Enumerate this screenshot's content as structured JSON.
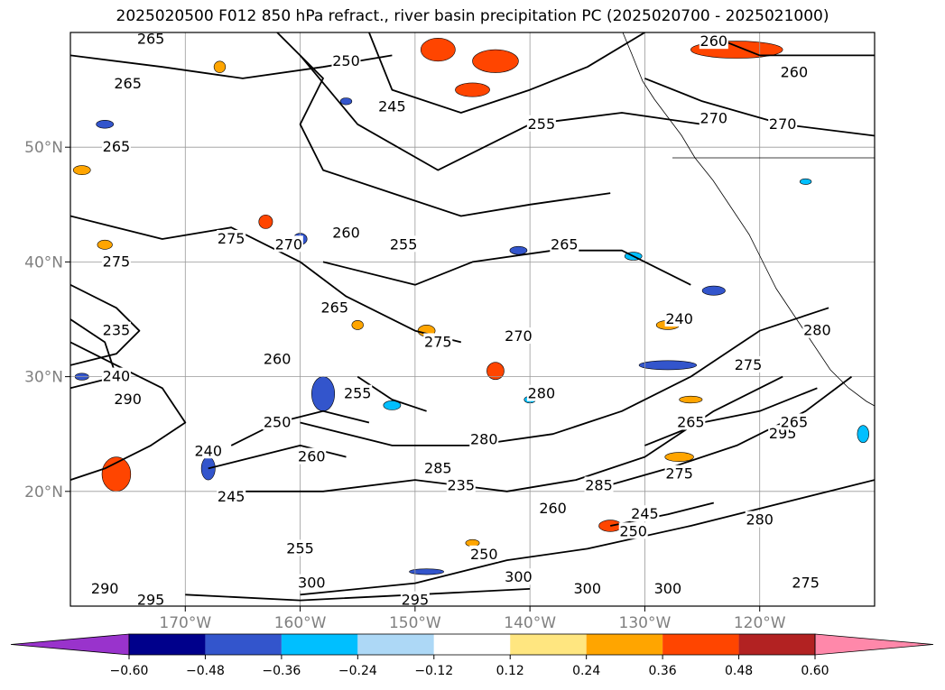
{
  "chart_data": {
    "type": "heatmap",
    "title": "2025020500 F012 850 hPa refract., river basin precipitation PC (2025020700 - 2025021000)",
    "map": {
      "lon_range": [
        -180,
        -110
      ],
      "lat_range": [
        10,
        60
      ],
      "lon_ticks": [
        {
          "lon": -170,
          "label": "170°W"
        },
        {
          "lon": -160,
          "label": "160°W"
        },
        {
          "lon": -150,
          "label": "150°W"
        },
        {
          "lon": -140,
          "label": "140°W"
        },
        {
          "lon": -130,
          "label": "130°W"
        },
        {
          "lon": -120,
          "label": "120°W"
        }
      ],
      "lat_ticks": [
        {
          "lat": 50,
          "label": "50°N"
        },
        {
          "lat": 40,
          "label": "40°N"
        },
        {
          "lat": 30,
          "label": "30°N"
        },
        {
          "lat": 20,
          "label": "20°N"
        }
      ],
      "grid": true
    },
    "colorbar": {
      "position": "bottom",
      "extend": "both",
      "bounds": [
        -0.6,
        -0.48,
        -0.36,
        -0.24,
        -0.12,
        0.12,
        0.24,
        0.36,
        0.48,
        0.6
      ],
      "tick_labels": [
        "−0.60",
        "−0.48",
        "−0.36",
        "−0.24",
        "−0.12",
        "0.12",
        "0.24",
        "0.36",
        "0.48",
        "0.60"
      ],
      "colors": [
        "#9933cc",
        "#00008b",
        "#3355cc",
        "#00bfff",
        "#add8f6",
        "#ffffff",
        "#ffe680",
        "#ffa500",
        "#ff4500",
        "#b22222",
        "#ff88aa"
      ]
    },
    "contours": [
      {
        "level": 265,
        "points": [
          [
            -180,
            58
          ],
          [
            -172,
            57
          ],
          [
            -165,
            56
          ],
          [
            -158,
            57
          ],
          [
            -152,
            58
          ]
        ],
        "labels": [
          {
            "lon": -173,
            "lat": 59.4,
            "text": "265"
          },
          {
            "lon": -175,
            "lat": 55.5,
            "text": "265"
          },
          {
            "lon": -176,
            "lat": 50,
            "text": "265"
          }
        ]
      },
      {
        "level": 250,
        "points": [
          [
            -162,
            60
          ],
          [
            -158,
            56
          ],
          [
            -160,
            52
          ],
          [
            -158,
            48
          ],
          [
            -152,
            46
          ],
          [
            -146,
            44
          ],
          [
            -140,
            45
          ],
          [
            -133,
            46
          ]
        ],
        "labels": [
          {
            "lon": -156,
            "lat": 57.5,
            "text": "250"
          }
        ]
      },
      {
        "level": 245,
        "points": [
          [
            -154,
            60
          ],
          [
            -152,
            55
          ],
          [
            -146,
            53
          ],
          [
            -140,
            55
          ],
          [
            -135,
            57
          ],
          [
            -130,
            60
          ]
        ],
        "labels": [
          {
            "lon": -152,
            "lat": 53.5,
            "text": "245"
          }
        ]
      },
      {
        "level": 255,
        "points": [
          [
            -160,
            58
          ],
          [
            -155,
            52
          ],
          [
            -148,
            48
          ],
          [
            -140,
            52
          ],
          [
            -132,
            53
          ],
          [
            -125,
            52
          ]
        ],
        "labels": [
          {
            "lon": -139,
            "lat": 52,
            "text": "255"
          },
          {
            "lon": -151,
            "lat": 41.5,
            "text": "255"
          }
        ]
      },
      {
        "level": 260,
        "points": [
          [
            -125,
            60
          ],
          [
            -120,
            58
          ],
          [
            -112,
            58
          ],
          [
            -110,
            58
          ]
        ],
        "labels": [
          {
            "lon": -124,
            "lat": 59.2,
            "text": "260"
          },
          {
            "lon": -117,
            "lat": 56.5,
            "text": "260"
          },
          {
            "lon": -156,
            "lat": 42.5,
            "text": "260"
          }
        ]
      },
      {
        "level": 270,
        "points": [
          [
            -130,
            56
          ],
          [
            -125,
            54
          ],
          [
            -118,
            52
          ],
          [
            -110,
            51
          ]
        ],
        "labels": [
          {
            "lon": -124,
            "lat": 52.5,
            "text": "270"
          },
          {
            "lon": -118,
            "lat": 52,
            "text": "270"
          },
          {
            "lon": -161,
            "lat": 41.5,
            "text": "270"
          },
          {
            "lon": -141,
            "lat": 33.5,
            "text": "270"
          }
        ]
      },
      {
        "level": 275,
        "points": [
          [
            -180,
            44
          ],
          [
            -172,
            42
          ],
          [
            -166,
            43
          ],
          [
            -160,
            40
          ],
          [
            -156,
            37
          ],
          [
            -150,
            34
          ],
          [
            -146,
            33
          ]
        ],
        "labels": [
          {
            "lon": -166,
            "lat": 42,
            "text": "275"
          },
          {
            "lon": -176,
            "lat": 40,
            "text": "275"
          },
          {
            "lon": -148,
            "lat": 33,
            "text": "275"
          },
          {
            "lon": -116,
            "lat": 12,
            "text": "275"
          }
        ]
      },
      {
        "level": 265,
        "points": [
          [
            -158,
            40
          ],
          [
            -150,
            38
          ],
          [
            -145,
            40
          ],
          [
            -138,
            41
          ],
          [
            -132,
            41
          ],
          [
            -126,
            38
          ]
        ],
        "labels": [
          {
            "lon": -137,
            "lat": 41.5,
            "text": "265"
          },
          {
            "lon": -157,
            "lat": 36,
            "text": "265"
          }
        ]
      },
      {
        "level": 280,
        "points": [
          [
            -160,
            26
          ],
          [
            -152,
            24
          ],
          [
            -145,
            24
          ],
          [
            -138,
            25
          ],
          [
            -132,
            27
          ],
          [
            -126,
            30
          ],
          [
            -120,
            34
          ],
          [
            -114,
            36
          ]
        ],
        "labels": [
          {
            "lon": -144,
            "lat": 24.5,
            "text": "280"
          },
          {
            "lon": -139,
            "lat": 28.5,
            "text": "280"
          },
          {
            "lon": -115,
            "lat": 34,
            "text": "280"
          },
          {
            "lon": -120,
            "lat": 17.5,
            "text": "280"
          }
        ]
      },
      {
        "level": 285,
        "points": [
          [
            -165,
            20
          ],
          [
            -158,
            20
          ],
          [
            -150,
            21
          ],
          [
            -142,
            20
          ],
          [
            -136,
            21
          ],
          [
            -130,
            23
          ],
          [
            -124,
            27
          ],
          [
            -118,
            30
          ]
        ],
        "labels": [
          {
            "lon": -148,
            "lat": 22,
            "text": "285"
          },
          {
            "lon": -134,
            "lat": 20.5,
            "text": "285"
          }
        ]
      },
      {
        "level": 290,
        "points": [
          [
            -180,
            33
          ],
          [
            -176,
            31
          ],
          [
            -172,
            29
          ],
          [
            -170,
            26
          ],
          [
            -173,
            24
          ],
          [
            -177,
            22
          ],
          [
            -180,
            21
          ]
        ],
        "labels": [
          {
            "lon": -175,
            "lat": 28,
            "text": "290"
          },
          {
            "lon": -177,
            "lat": 11.5,
            "text": "290"
          }
        ]
      },
      {
        "level": 235,
        "points": [
          [
            -180,
            38
          ],
          [
            -176,
            36
          ],
          [
            -174,
            34
          ],
          [
            -176,
            32
          ],
          [
            -180,
            31
          ]
        ],
        "labels": [
          {
            "lon": -176,
            "lat": 34,
            "text": "235"
          },
          {
            "lon": -146,
            "lat": 20.5,
            "text": "235"
          }
        ]
      },
      {
        "level": 240,
        "points": [
          [
            -180,
            35
          ],
          [
            -177,
            33
          ],
          [
            -176,
            30
          ],
          [
            -180,
            29
          ]
        ],
        "labels": [
          {
            "lon": -176,
            "lat": 30,
            "text": "240"
          },
          {
            "lon": -127,
            "lat": 35,
            "text": "240"
          },
          {
            "lon": -168,
            "lat": 23.5,
            "text": "240"
          }
        ]
      },
      {
        "level": 300,
        "points": [
          [
            -160,
            11
          ],
          [
            -150,
            12
          ],
          [
            -142,
            14
          ],
          [
            -135,
            15
          ],
          [
            -126,
            17
          ],
          [
            -118,
            19
          ],
          [
            -110,
            21
          ]
        ],
        "labels": [
          {
            "lon": -141,
            "lat": 12.5,
            "text": "300"
          },
          {
            "lon": -128,
            "lat": 11.5,
            "text": "300"
          },
          {
            "lon": -159,
            "lat": 12,
            "text": "300"
          },
          {
            "lon": -135,
            "lat": 11.5,
            "text": "300"
          }
        ]
      },
      {
        "level": 295,
        "points": [
          [
            -170,
            11
          ],
          [
            -160,
            10.5
          ],
          [
            -150,
            11
          ],
          [
            -140,
            11.5
          ]
        ],
        "labels": [
          {
            "lon": -173,
            "lat": 10.5,
            "text": "295"
          },
          {
            "lon": -150,
            "lat": 10.5,
            "text": "295"
          },
          {
            "lon": -118,
            "lat": 25,
            "text": "295"
          }
        ]
      },
      {
        "level": 275,
        "points": [
          [
            -135,
            20
          ],
          [
            -128,
            22
          ],
          [
            -122,
            24
          ],
          [
            -116,
            27
          ],
          [
            -112,
            30
          ]
        ],
        "labels": [
          {
            "lon": -127,
            "lat": 21.5,
            "text": "275"
          },
          {
            "lon": -121,
            "lat": 31,
            "text": "275"
          }
        ]
      },
      {
        "level": 265,
        "points": [
          [
            -130,
            24
          ],
          [
            -125,
            26
          ],
          [
            -120,
            27
          ],
          [
            -115,
            29
          ]
        ],
        "labels": [
          {
            "lon": -126,
            "lat": 26,
            "text": "265"
          },
          {
            "lon": -117,
            "lat": 26,
            "text": "265"
          }
        ]
      },
      {
        "level": 250,
        "points": [
          [
            -166,
            24
          ],
          [
            -162,
            26
          ],
          [
            -158,
            27
          ],
          [
            -154,
            26
          ]
        ],
        "labels": [
          {
            "lon": -162,
            "lat": 26,
            "text": "250"
          },
          {
            "lon": -144,
            "lat": 14.5,
            "text": "250"
          },
          {
            "lon": -131,
            "lat": 16.5,
            "text": "250"
          }
        ]
      },
      {
        "level": 260,
        "points": [
          [
            -168,
            22
          ],
          [
            -164,
            23
          ],
          [
            -160,
            24
          ],
          [
            -156,
            23
          ]
        ],
        "labels": [
          {
            "lon": -159,
            "lat": 23,
            "text": "260"
          },
          {
            "lon": -162,
            "lat": 31.5,
            "text": "260"
          },
          {
            "lon": -138,
            "lat": 18.5,
            "text": "260"
          }
        ]
      },
      {
        "level": 255,
        "points": [
          [
            -155,
            30
          ],
          [
            -152,
            28
          ],
          [
            -149,
            27
          ]
        ],
        "labels": [
          {
            "lon": -155,
            "lat": 28.5,
            "text": "255"
          },
          {
            "lon": -160,
            "lat": 15,
            "text": "255"
          }
        ]
      },
      {
        "level": 245,
        "points": [
          [
            -133,
            17
          ],
          [
            -128,
            18
          ],
          [
            -124,
            19
          ]
        ],
        "labels": [
          {
            "lon": -130,
            "lat": 18,
            "text": "245"
          },
          {
            "lon": -166,
            "lat": 19.5,
            "text": "245"
          }
        ]
      }
    ],
    "shaded_areas": [
      {
        "class": 8,
        "lon": -148,
        "lat": 58.5,
        "w": 3,
        "h": 2
      },
      {
        "class": 8,
        "lon": -143,
        "lat": 57.5,
        "w": 4,
        "h": 2
      },
      {
        "class": 8,
        "lon": -145,
        "lat": 55,
        "w": 3,
        "h": 1.2
      },
      {
        "class": 8,
        "lon": -122,
        "lat": 58.5,
        "w": 8,
        "h": 1.5
      },
      {
        "class": 8,
        "lon": -143,
        "lat": 30.5,
        "w": 1.5,
        "h": 1.5
      },
      {
        "class": 8,
        "lon": -176,
        "lat": 21.5,
        "w": 2.5,
        "h": 3
      },
      {
        "class": 8,
        "lon": -133,
        "lat": 17,
        "w": 2,
        "h": 1
      },
      {
        "class": 8,
        "lon": -163,
        "lat": 43.5,
        "w": 1.2,
        "h": 1.2
      },
      {
        "class": 7,
        "lon": -128,
        "lat": 34.5,
        "w": 2,
        "h": 0.8
      },
      {
        "class": 7,
        "lon": -127,
        "lat": 23,
        "w": 2.5,
        "h": 0.8
      },
      {
        "class": 7,
        "lon": -126,
        "lat": 28,
        "w": 2,
        "h": 0.6
      },
      {
        "class": 7,
        "lon": -155,
        "lat": 34.5,
        "w": 1,
        "h": 0.8
      },
      {
        "class": 7,
        "lon": -149,
        "lat": 34,
        "w": 1.5,
        "h": 1
      },
      {
        "class": 7,
        "lon": -167,
        "lat": 57,
        "w": 1,
        "h": 1
      },
      {
        "class": 7,
        "lon": -179,
        "lat": 48,
        "w": 1.5,
        "h": 0.8
      },
      {
        "class": 7,
        "lon": -177,
        "lat": 41.5,
        "w": 1.3,
        "h": 0.8
      },
      {
        "class": 7,
        "lon": -145,
        "lat": 15.5,
        "w": 1.2,
        "h": 0.6
      },
      {
        "class": 2,
        "lon": -158,
        "lat": 28.5,
        "w": 2,
        "h": 3
      },
      {
        "class": 2,
        "lon": -168,
        "lat": 22,
        "w": 1.2,
        "h": 2
      },
      {
        "class": 2,
        "lon": -128,
        "lat": 31,
        "w": 5,
        "h": 0.8
      },
      {
        "class": 2,
        "lon": -124,
        "lat": 37.5,
        "w": 2,
        "h": 0.8
      },
      {
        "class": 2,
        "lon": -141,
        "lat": 41,
        "w": 1.5,
        "h": 0.7
      },
      {
        "class": 2,
        "lon": -160,
        "lat": 42,
        "w": 1.2,
        "h": 1
      },
      {
        "class": 2,
        "lon": -177,
        "lat": 52,
        "w": 1.5,
        "h": 0.7
      },
      {
        "class": 2,
        "lon": -156,
        "lat": 54,
        "w": 1,
        "h": 0.6
      },
      {
        "class": 2,
        "lon": -149,
        "lat": 13,
        "w": 3,
        "h": 0.5
      },
      {
        "class": 2,
        "lon": -179,
        "lat": 30,
        "w": 1.2,
        "h": 0.6
      },
      {
        "class": 3,
        "lon": -131,
        "lat": 40.5,
        "w": 1.5,
        "h": 0.7
      },
      {
        "class": 3,
        "lon": -152,
        "lat": 27.5,
        "w": 1.5,
        "h": 0.8
      },
      {
        "class": 3,
        "lon": -140,
        "lat": 28,
        "w": 1,
        "h": 0.6
      },
      {
        "class": 3,
        "lon": -116,
        "lat": 47,
        "w": 1,
        "h": 0.5
      },
      {
        "class": 3,
        "lon": -111,
        "lat": 25,
        "w": 1,
        "h": 1.5
      }
    ]
  }
}
